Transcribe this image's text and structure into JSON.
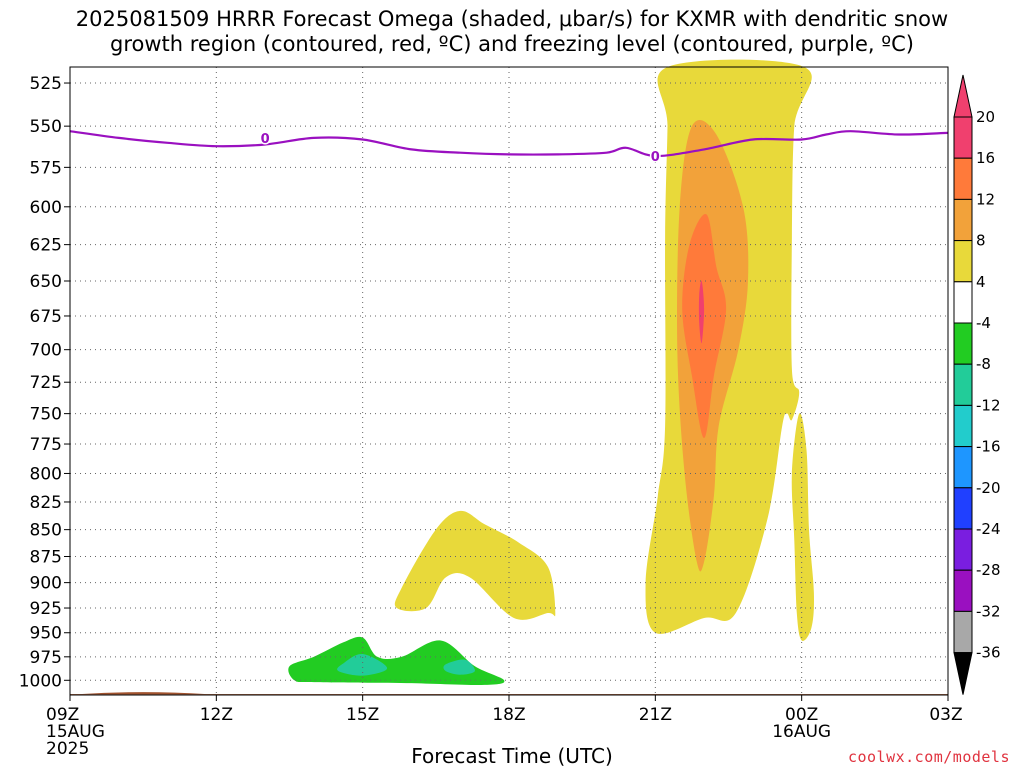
{
  "title_line1": "2025081509 HRRR Forecast Omega (shaded, μbar/s) for KXMR with dendritic snow",
  "title_line2": "growth region (contoured, red, ºC) and freezing level (contoured, purple, ºC)",
  "xlabel": "Forecast Time (UTC)",
  "credit": "coolwx.com/models",
  "chart_data": {
    "type": "heatmap",
    "title": "2025081509 HRRR Forecast Omega (shaded, μbar/s) for KXMR with dendritic snow growth region (contoured, red, ºC) and freezing level (contoured, purple, ºC)",
    "xlabel": "Forecast Time (UTC)",
    "ylabel": "",
    "x_ticks": [
      {
        "h": 0,
        "label": "09Z",
        "sub": [
          "15AUG",
          "2025"
        ]
      },
      {
        "h": 3,
        "label": "12Z",
        "sub": []
      },
      {
        "h": 6,
        "label": "15Z",
        "sub": []
      },
      {
        "h": 9,
        "label": "18Z",
        "sub": []
      },
      {
        "h": 12,
        "label": "21Z",
        "sub": []
      },
      {
        "h": 15,
        "label": "00Z",
        "sub": [
          "16AUG"
        ]
      },
      {
        "h": 18,
        "label": "03Z",
        "sub": []
      }
    ],
    "xlim": [
      0,
      18
    ],
    "y_ticks": [
      525,
      550,
      575,
      600,
      625,
      650,
      675,
      700,
      725,
      750,
      775,
      800,
      825,
      850,
      875,
      900,
      925,
      950,
      975,
      1000
    ],
    "ylim": [
      1015,
      515
    ],
    "y_scale": "log-pressure",
    "grid": true,
    "colorbar": {
      "labels": [
        "20",
        "16",
        "12",
        "8",
        "4",
        "-4",
        "-8",
        "-12",
        "-16",
        "-20",
        "-24",
        "-28",
        "-32",
        "-36"
      ],
      "colors": [
        "#f0406e",
        "#ff7a3a",
        "#f2a23a",
        "#e8d93a",
        "#ffffff",
        "#22cc22",
        "#22cc99",
        "#22cccc",
        "#1e96ff",
        "#2040ff",
        "#7a1ee0",
        "#9a10c0",
        "#a8a8a8"
      ]
    },
    "freezing_level": {
      "label": "0",
      "color": "#9a10c0",
      "points": [
        [
          0,
          553
        ],
        [
          1,
          557
        ],
        [
          2,
          560
        ],
        [
          3,
          562
        ],
        [
          4,
          561
        ],
        [
          5,
          557
        ],
        [
          6,
          558
        ],
        [
          7,
          564
        ],
        [
          8,
          566
        ],
        [
          9,
          567
        ],
        [
          10,
          567
        ],
        [
          11,
          566
        ],
        [
          11.4,
          563
        ],
        [
          12,
          568
        ],
        [
          13,
          564
        ],
        [
          14,
          558
        ],
        [
          15,
          558
        ],
        [
          15.5,
          555
        ],
        [
          16,
          553
        ],
        [
          17,
          555
        ],
        [
          18,
          554
        ]
      ]
    },
    "omega_regions": [
      {
        "level": 4,
        "color": "#e8d93a",
        "polygon": [
          [
            12.25,
            515
          ],
          [
            15.05,
            515
          ],
          [
            14.85,
            550
          ],
          [
            14.8,
            620
          ],
          [
            14.8,
            715
          ],
          [
            14.95,
            733
          ],
          [
            14.8,
            755
          ],
          [
            14.7,
            750
          ],
          [
            14.6,
            760
          ],
          [
            14.3,
            840
          ],
          [
            13.65,
            930
          ],
          [
            13.0,
            935
          ],
          [
            12.0,
            950
          ],
          [
            11.8,
            900
          ],
          [
            12.05,
            820
          ],
          [
            12.2,
            760
          ],
          [
            12.2,
            620
          ],
          [
            12.25,
            550
          ]
        ]
      },
      {
        "level": 4,
        "color": "#e8d93a",
        "polygon": [
          [
            14.95,
            750
          ],
          [
            15.1,
            780
          ],
          [
            15.15,
            850
          ],
          [
            15.25,
            910
          ],
          [
            15.2,
            945
          ],
          [
            15.0,
            958
          ],
          [
            14.9,
            930
          ],
          [
            14.85,
            860
          ],
          [
            14.8,
            800
          ]
        ]
      },
      {
        "level": 4,
        "color": "#e8d93a",
        "polygon": [
          [
            6.8,
            905
          ],
          [
            7.5,
            850
          ],
          [
            8.0,
            833
          ],
          [
            8.5,
            845
          ],
          [
            9.2,
            862
          ],
          [
            9.8,
            885
          ],
          [
            9.95,
            930
          ],
          [
            9.8,
            930
          ],
          [
            9.1,
            935
          ],
          [
            8.2,
            895
          ],
          [
            7.7,
            895
          ],
          [
            7.3,
            925
          ],
          [
            6.7,
            925
          ]
        ]
      },
      {
        "level": 8,
        "color": "#f2a23a",
        "polygon": [
          [
            13.25,
            555
          ],
          [
            13.8,
            600
          ],
          [
            13.9,
            650
          ],
          [
            13.7,
            700
          ],
          [
            13.3,
            760
          ],
          [
            13.2,
            820
          ],
          [
            13.0,
            880
          ],
          [
            12.85,
            880
          ],
          [
            12.6,
            800
          ],
          [
            12.45,
            700
          ],
          [
            12.5,
            600
          ],
          [
            12.75,
            550
          ]
        ]
      },
      {
        "level": 12,
        "color": "#ff7a3a",
        "polygon": [
          [
            13.05,
            605
          ],
          [
            13.25,
            640
          ],
          [
            13.45,
            670
          ],
          [
            13.2,
            720
          ],
          [
            13.0,
            770
          ],
          [
            12.75,
            720
          ],
          [
            12.55,
            670
          ],
          [
            12.7,
            625
          ]
        ]
      },
      {
        "level": 16,
        "color": "#f0406e",
        "polygon": [
          [
            12.95,
            650
          ],
          [
            13.0,
            670
          ],
          [
            12.95,
            695
          ],
          [
            12.9,
            680
          ],
          [
            12.9,
            660
          ]
        ]
      },
      {
        "level": -4,
        "color": "#22cc22",
        "polygon": [
          [
            5.0,
            975
          ],
          [
            5.6,
            960
          ],
          [
            6.0,
            955
          ],
          [
            6.3,
            975
          ],
          [
            6.8,
            975
          ],
          [
            7.6,
            958
          ],
          [
            8.3,
            985
          ],
          [
            8.9,
            1000
          ],
          [
            8.5,
            1005
          ],
          [
            6.9,
            1003
          ],
          [
            5.0,
            1002
          ],
          [
            4.6,
            1000
          ],
          [
            4.5,
            985
          ]
        ]
      },
      {
        "level": -8,
        "color": "#22cc99",
        "polygon": [
          [
            5.6,
            982
          ],
          [
            6.0,
            972
          ],
          [
            6.5,
            987
          ],
          [
            6.0,
            995
          ],
          [
            5.5,
            990
          ]
        ]
      },
      {
        "level": -8,
        "color": "#22cc99",
        "polygon": [
          [
            7.7,
            983
          ],
          [
            8.1,
            978
          ],
          [
            8.3,
            990
          ],
          [
            8.0,
            994
          ],
          [
            7.7,
            990
          ]
        ]
      }
    ],
    "surface": {
      "color": "#a0522d",
      "height": 1015
    }
  }
}
